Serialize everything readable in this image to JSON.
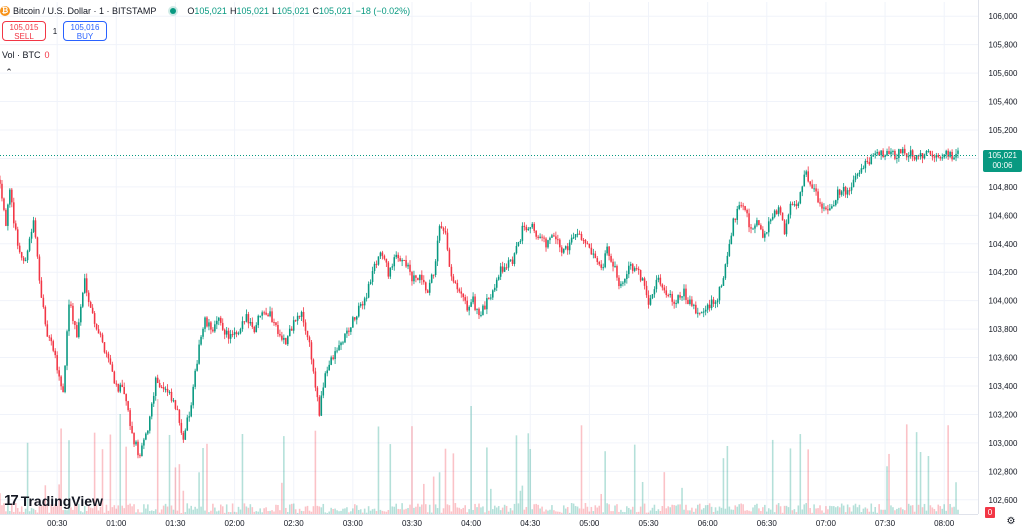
{
  "header": {
    "coin_glyph": "₿",
    "symbol": "Bitcoin / U.S. Dollar · 1 · BITSTAMP",
    "o_label": "O",
    "o_value": "105,021",
    "h_label": "H",
    "h_value": "105,021",
    "l_label": "L",
    "l_value": "105,021",
    "c_label": "C",
    "c_value": "105,021",
    "change": "−18 (−0.02%)"
  },
  "trade": {
    "sell_price": "105,015",
    "sell_label": "SELL",
    "spread": "1",
    "buy_price": "105,016",
    "buy_label": "BUY"
  },
  "volume_legend": {
    "label": "Vol · BTC",
    "value": "0"
  },
  "collapse_glyph": "⌃",
  "logo": {
    "mark": "17",
    "text": "TradingView"
  },
  "last_price": {
    "price": "105,021",
    "countdown": "00:06"
  },
  "volume_badge": "0",
  "settings_glyph": "⚙",
  "colors": {
    "up": "#089981",
    "down": "#f23645",
    "grid": "#f0f3fa",
    "text": "#131722"
  },
  "chart_data": {
    "type": "candlestick",
    "ylim": [
      102500,
      106100
    ],
    "y_ticks": [
      102600,
      102800,
      103000,
      103200,
      103400,
      103600,
      103800,
      104000,
      104200,
      104400,
      104600,
      104800,
      105000,
      105200,
      105400,
      105600,
      105800,
      106000
    ],
    "y_tick_labels": [
      "102,600",
      "102,800",
      "103,000",
      "103,200",
      "103,400",
      "103,600",
      "103,800",
      "104,000",
      "104,200",
      "104,400",
      "104,600",
      "104,800",
      "105,000",
      "105,200",
      "105,400",
      "105,600",
      "105,800",
      "106,000"
    ],
    "x_tick_labels": [
      "00:30",
      "01:00",
      "01:30",
      "02:00",
      "02:30",
      "03:00",
      "03:30",
      "04:00",
      "04:30",
      "05:00",
      "05:30",
      "06:00",
      "06:30",
      "07:00",
      "07:30",
      "08:00"
    ],
    "x_tick_minutes": [
      30,
      60,
      90,
      120,
      150,
      180,
      210,
      240,
      270,
      300,
      330,
      360,
      390,
      420,
      450,
      480
    ],
    "x_start_minute": 1,
    "x_end_minute": 487,
    "last_price": 105021,
    "price_anchors": [
      [
        1,
        104850
      ],
      [
        4,
        104550
      ],
      [
        6,
        104750
      ],
      [
        10,
        104400
      ],
      [
        13,
        104250
      ],
      [
        18,
        104550
      ],
      [
        20,
        104300
      ],
      [
        24,
        103800
      ],
      [
        28,
        103650
      ],
      [
        33,
        103350
      ],
      [
        36,
        104000
      ],
      [
        40,
        103750
      ],
      [
        44,
        104150
      ],
      [
        48,
        103900
      ],
      [
        53,
        103700
      ],
      [
        56,
        103600
      ],
      [
        60,
        103400
      ],
      [
        64,
        103350
      ],
      [
        68,
        103050
      ],
      [
        72,
        102900
      ],
      [
        76,
        103100
      ],
      [
        80,
        103450
      ],
      [
        86,
        103350
      ],
      [
        90,
        103250
      ],
      [
        94,
        103050
      ],
      [
        98,
        103250
      ],
      [
        102,
        103700
      ],
      [
        105,
        103850
      ],
      [
        108,
        103800
      ],
      [
        112,
        103850
      ],
      [
        117,
        103750
      ],
      [
        122,
        103750
      ],
      [
        126,
        103900
      ],
      [
        130,
        103800
      ],
      [
        134,
        103950
      ],
      [
        138,
        103900
      ],
      [
        142,
        103800
      ],
      [
        146,
        103700
      ],
      [
        150,
        103850
      ],
      [
        154,
        103900
      ],
      [
        158,
        103700
      ],
      [
        161,
        103400
      ],
      [
        163,
        103200
      ],
      [
        166,
        103500
      ],
      [
        170,
        103600
      ],
      [
        174,
        103700
      ],
      [
        178,
        103800
      ],
      [
        182,
        103900
      ],
      [
        187,
        104050
      ],
      [
        190,
        104200
      ],
      [
        194,
        104350
      ],
      [
        198,
        104200
      ],
      [
        202,
        104300
      ],
      [
        206,
        104300
      ],
      [
        210,
        104150
      ],
      [
        214,
        104150
      ],
      [
        218,
        104050
      ],
      [
        221,
        104200
      ],
      [
        224,
        104500
      ],
      [
        227,
        104450
      ],
      [
        230,
        104150
      ],
      [
        234,
        104050
      ],
      [
        238,
        103950
      ],
      [
        241,
        104000
      ],
      [
        244,
        103900
      ],
      [
        247,
        103950
      ],
      [
        250,
        104050
      ],
      [
        254,
        104200
      ],
      [
        258,
        104250
      ],
      [
        262,
        104300
      ],
      [
        266,
        104500
      ],
      [
        270,
        104550
      ],
      [
        274,
        104450
      ],
      [
        278,
        104400
      ],
      [
        282,
        104450
      ],
      [
        286,
        104350
      ],
      [
        290,
        104400
      ],
      [
        294,
        104500
      ],
      [
        298,
        104400
      ],
      [
        302,
        104300
      ],
      [
        306,
        104200
      ],
      [
        309,
        104350
      ],
      [
        312,
        104250
      ],
      [
        316,
        104100
      ],
      [
        320,
        104250
      ],
      [
        324,
        104200
      ],
      [
        327,
        104150
      ],
      [
        330,
        104000
      ],
      [
        334,
        104150
      ],
      [
        337,
        104100
      ],
      [
        340,
        104050
      ],
      [
        344,
        104000
      ],
      [
        348,
        104050
      ],
      [
        352,
        103950
      ],
      [
        356,
        103900
      ],
      [
        360,
        103950
      ],
      [
        364,
        104000
      ],
      [
        367,
        104100
      ],
      [
        370,
        104300
      ],
      [
        373,
        104550
      ],
      [
        376,
        104700
      ],
      [
        379,
        104650
      ],
      [
        382,
        104500
      ],
      [
        385,
        104550
      ],
      [
        388,
        104450
      ],
      [
        392,
        104550
      ],
      [
        396,
        104650
      ],
      [
        399,
        104500
      ],
      [
        402,
        104650
      ],
      [
        406,
        104700
      ],
      [
        409,
        104900
      ],
      [
        412,
        104850
      ],
      [
        416,
        104700
      ],
      [
        420,
        104650
      ],
      [
        424,
        104700
      ],
      [
        428,
        104800
      ],
      [
        432,
        104750
      ],
      [
        436,
        104900
      ],
      [
        440,
        104950
      ],
      [
        444,
        105000
      ],
      [
        448,
        105050
      ],
      [
        452,
        105020
      ],
      [
        456,
        105030
      ],
      [
        460,
        105040
      ],
      [
        465,
        105020
      ],
      [
        470,
        105030
      ],
      [
        475,
        105010
      ],
      [
        480,
        105025
      ],
      [
        487,
        105021
      ]
    ]
  }
}
